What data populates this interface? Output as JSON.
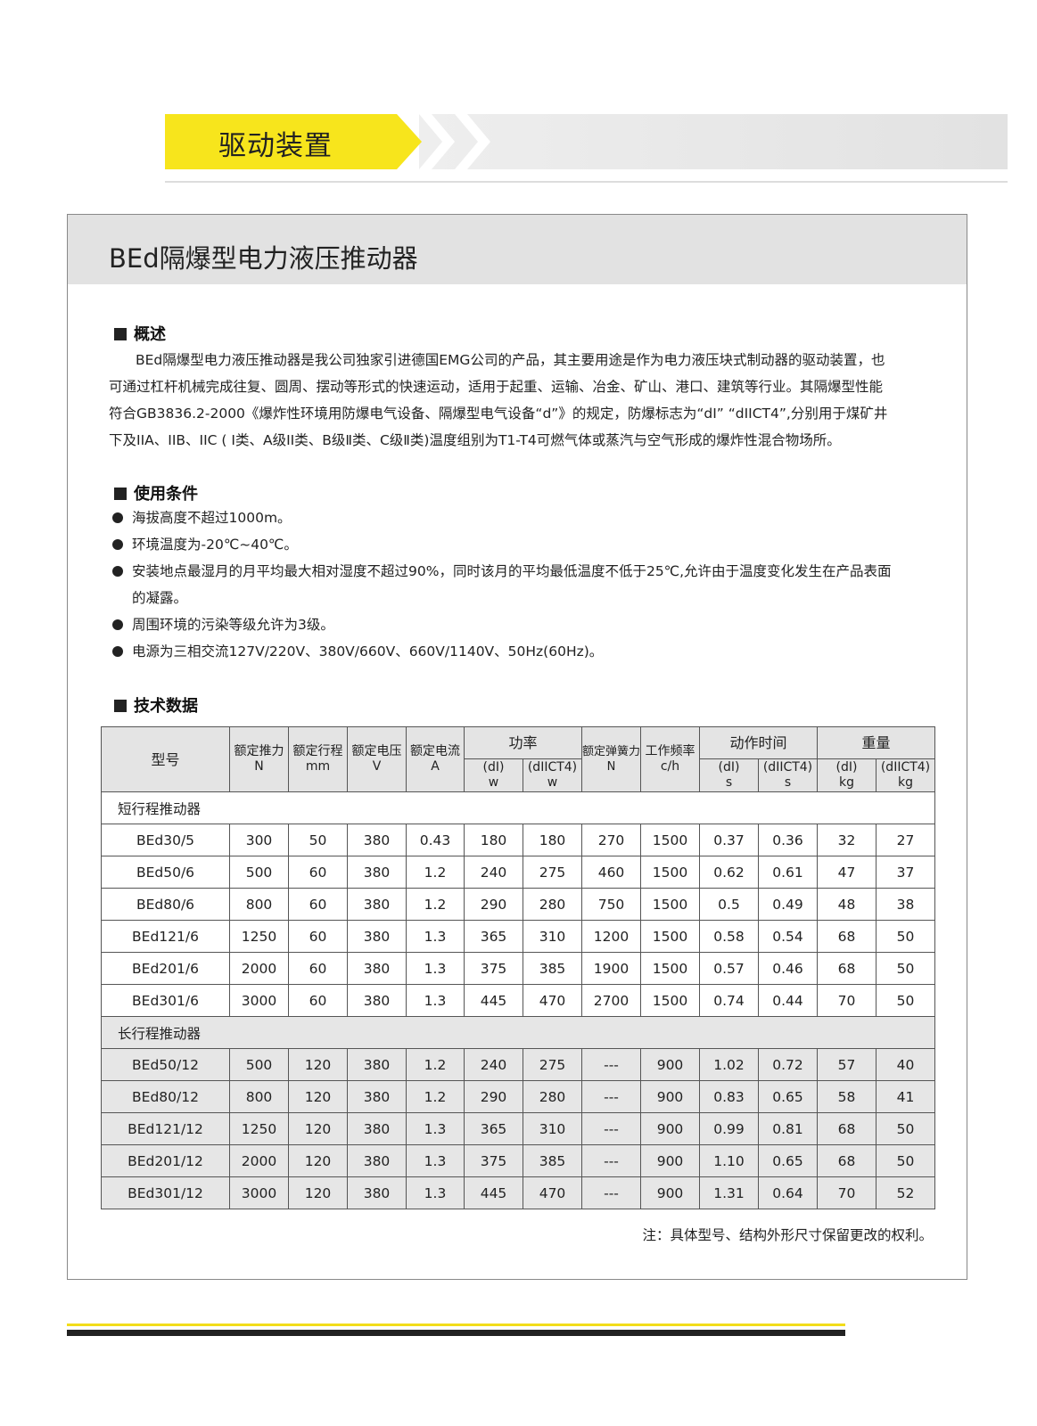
{
  "banner": {
    "title": "驱动装置",
    "accent": "#f7e51c"
  },
  "page_title": "BEd隔爆型电力液压推动器",
  "overview": {
    "heading": "概述",
    "text": "BEd隔爆型电力液压推动器是我公司独家引进德国EMG公司的产品，其主要用途是作为电力液压块式制动器的驱动装置，也可通过杠杆机械完成往复、圆周、摆动等形式的快速运动，适用于起重、运输、冶金、矿山、港口、建筑等行业。其隔爆型性能符合GB3836.2-2000《爆炸性环境用防爆电气设备、隔爆型电气设备“d”》的规定，防爆标志为“dI” “dIICT4”,分别用于煤矿井下及IIA、IIB、IIC ( I类、A级II类、B级Ⅱ类、C级Ⅱ类)温度组别为T1-T4可燃气体或蒸汽与空气形成的爆炸性混合物场所。"
  },
  "conditions": {
    "heading": "使用条件",
    "items": [
      "海拔高度不超过1000m。",
      "环境温度为-20℃~40℃。",
      "安装地点最湿月的月平均最大相对湿度不超过90%，同时该月的平均最低温度不低于25℃,允许由于温度变化发生在产品表面的凝露。",
      "周围环境的污染等级允许为3级。",
      "电源为三相交流127V/220V、380V/660V、660V/1140V、50Hz(60Hz)。"
    ]
  },
  "tech": {
    "heading": "技术数据",
    "headers": {
      "model": "型号",
      "thrust": [
        "额定推力",
        "N"
      ],
      "stroke": [
        "额定行程",
        "mm"
      ],
      "voltage": [
        "额定电压",
        "V"
      ],
      "current": [
        "额定电流",
        "A"
      ],
      "power": "功率",
      "power_dI": [
        "(dI)",
        "w"
      ],
      "power_dIICT4": [
        "(dIICT4)",
        "w"
      ],
      "spring": [
        "额定弹簧力",
        "N"
      ],
      "freq": [
        "工作频率",
        "c/h"
      ],
      "time": "动作时间",
      "time_dI": [
        "(dI)",
        "s"
      ],
      "time_dIICT4": [
        "(dIICT4)",
        "s"
      ],
      "weight": "重量",
      "weight_dI": [
        "(dI)",
        "kg"
      ],
      "weight_dIICT4": [
        "(dIICT4)",
        "kg"
      ]
    },
    "groups": [
      {
        "label": "短行程推动器",
        "rows": [
          [
            "BEd30/5",
            "300",
            "50",
            "380",
            "0.43",
            "180",
            "180",
            "270",
            "1500",
            "0.37",
            "0.36",
            "32",
            "27"
          ],
          [
            "BEd50/6",
            "500",
            "60",
            "380",
            "1.2",
            "240",
            "275",
            "460",
            "1500",
            "0.62",
            "0.61",
            "47",
            "37"
          ],
          [
            "BEd80/6",
            "800",
            "60",
            "380",
            "1.2",
            "290",
            "280",
            "750",
            "1500",
            "0.5",
            "0.49",
            "48",
            "38"
          ],
          [
            "BEd121/6",
            "1250",
            "60",
            "380",
            "1.3",
            "365",
            "310",
            "1200",
            "1500",
            "0.58",
            "0.54",
            "68",
            "50"
          ],
          [
            "BEd201/6",
            "2000",
            "60",
            "380",
            "1.3",
            "375",
            "385",
            "1900",
            "1500",
            "0.57",
            "0.46",
            "68",
            "50"
          ],
          [
            "BEd301/6",
            "3000",
            "60",
            "380",
            "1.3",
            "445",
            "470",
            "2700",
            "1500",
            "0.74",
            "0.44",
            "70",
            "50"
          ]
        ]
      },
      {
        "label": "长行程推动器",
        "rows": [
          [
            "BEd50/12",
            "500",
            "120",
            "380",
            "1.2",
            "240",
            "275",
            "---",
            "900",
            "1.02",
            "0.72",
            "57",
            "40"
          ],
          [
            "BEd80/12",
            "800",
            "120",
            "380",
            "1.2",
            "290",
            "280",
            "---",
            "900",
            "0.83",
            "0.65",
            "58",
            "41"
          ],
          [
            "BEd121/12",
            "1250",
            "120",
            "380",
            "1.3",
            "365",
            "310",
            "---",
            "900",
            "0.99",
            "0.81",
            "68",
            "50"
          ],
          [
            "BEd201/12",
            "2000",
            "120",
            "380",
            "1.3",
            "375",
            "385",
            "---",
            "900",
            "1.10",
            "0.65",
            "68",
            "50"
          ],
          [
            "BEd301/12",
            "3000",
            "120",
            "380",
            "1.3",
            "445",
            "470",
            "---",
            "900",
            "1.31",
            "0.64",
            "70",
            "52"
          ]
        ]
      }
    ]
  },
  "note": "注：具体型号、结构外形尺寸保留更改的权利。"
}
